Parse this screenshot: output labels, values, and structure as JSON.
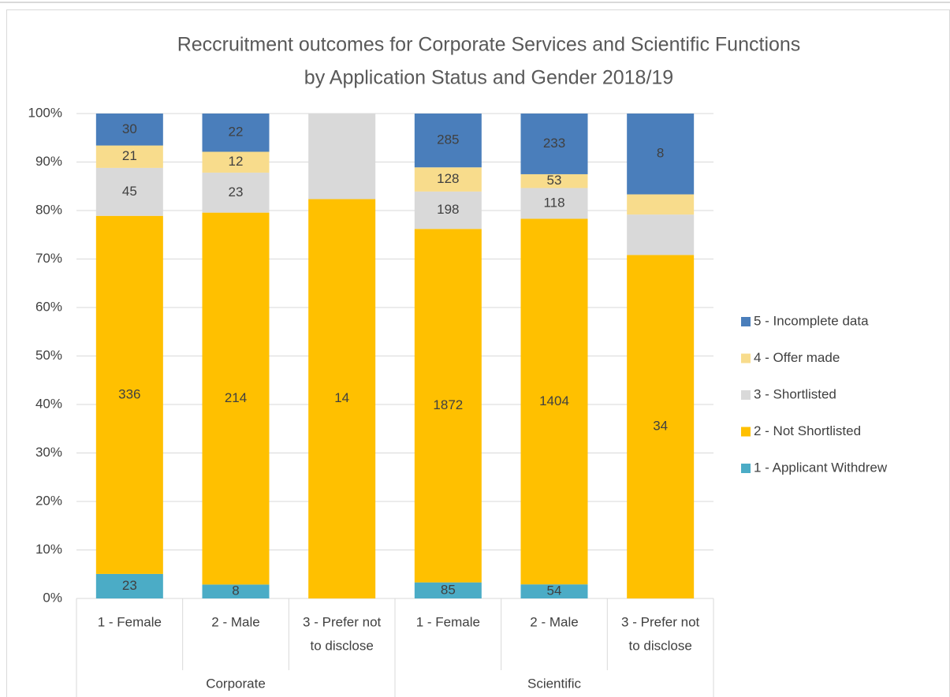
{
  "chart_data": {
    "type": "bar",
    "stacking": "percent",
    "title": [
      "Reccruitment outcomes for Corporate Services and Scientific Functions",
      "by Application Status and Gender 2018/19"
    ],
    "groups": [
      {
        "name": "Corporate",
        "categories": [
          [
            "1 -  Female"
          ],
          [
            "2 - Male"
          ],
          [
            "3 - Prefer not",
            "to disclose"
          ]
        ]
      },
      {
        "name": "Scientific",
        "categories": [
          [
            "1 -  Female"
          ],
          [
            "2 - Male"
          ],
          [
            "3 - Prefer not",
            "to disclose"
          ]
        ]
      }
    ],
    "series": [
      {
        "name": "1 - Applicant Withdrew",
        "color": "#4bacc6",
        "values": [
          23,
          8,
          0,
          85,
          54,
          0
        ],
        "value_labels": [
          23,
          8,
          null,
          85,
          54,
          null
        ]
      },
      {
        "name": "2 - Not Shortlisted",
        "color": "#ffc000",
        "values": [
          336,
          214,
          14,
          1872,
          1404,
          34
        ],
        "value_labels": [
          336,
          214,
          14,
          1872,
          1404,
          34
        ]
      },
      {
        "name": "3 - Shortlisted",
        "color": "#d9d9d9",
        "values": [
          45,
          23,
          3,
          198,
          118,
          4
        ],
        "value_labels": [
          45,
          23,
          null,
          198,
          118,
          null
        ]
      },
      {
        "name": "4 - Offer made",
        "color": "#f8dc8c",
        "values": [
          21,
          12,
          0,
          128,
          53,
          2
        ],
        "value_labels": [
          21,
          12,
          null,
          128,
          53,
          null
        ]
      },
      {
        "name": "5 - Incomplete data",
        "color": "#4a7ebb",
        "values": [
          30,
          22,
          0,
          285,
          233,
          8
        ],
        "value_labels": [
          30,
          22,
          null,
          285,
          233,
          8
        ]
      }
    ],
    "ylim": [
      0,
      100
    ],
    "yticks": [
      {
        "value": 0,
        "label": "0%"
      },
      {
        "value": 10,
        "label": "10%"
      },
      {
        "value": 20,
        "label": "20%"
      },
      {
        "value": 30,
        "label": "30%"
      },
      {
        "value": 40,
        "label": "40%"
      },
      {
        "value": 50,
        "label": "50%"
      },
      {
        "value": 60,
        "label": "60%"
      },
      {
        "value": 70,
        "label": "70%"
      },
      {
        "value": 80,
        "label": "80%"
      },
      {
        "value": 90,
        "label": "90%"
      },
      {
        "value": 100,
        "label": "100%"
      }
    ],
    "grid": true,
    "legend": "right"
  }
}
